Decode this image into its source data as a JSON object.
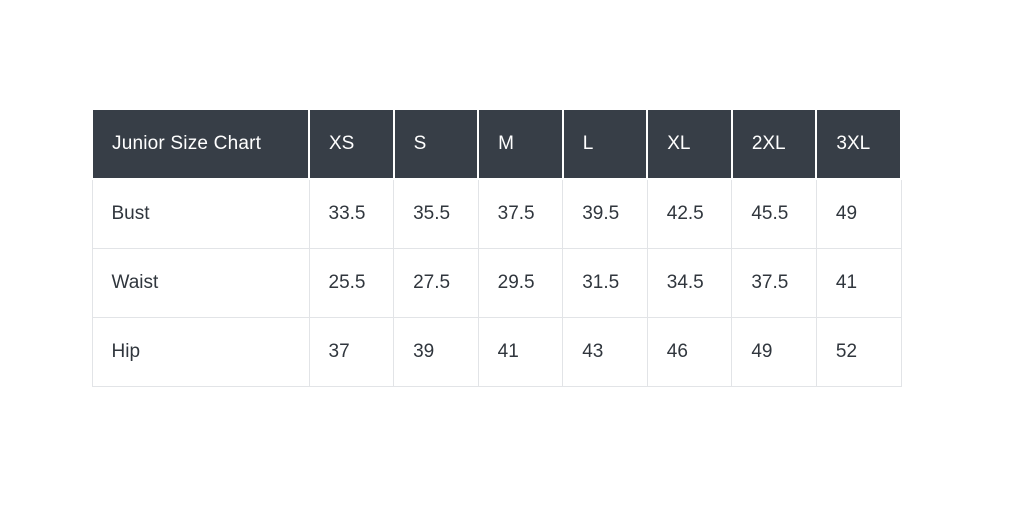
{
  "theme": {
    "page_background": "#ffffff",
    "header_background": "#373e47",
    "header_text_color": "#ffffff",
    "body_text_color": "#30363d",
    "cell_border_color": "#e2e4e7",
    "header_divider_color": "#ffffff"
  },
  "chart_data": {
    "type": "table",
    "title": "Junior Size Chart",
    "columns": [
      "XS",
      "S",
      "M",
      "L",
      "XL",
      "2XL",
      "3XL"
    ],
    "rows": [
      {
        "label": "Bust",
        "values": [
          33.5,
          35.5,
          37.5,
          39.5,
          42.5,
          45.5,
          49
        ]
      },
      {
        "label": "Waist",
        "values": [
          25.5,
          27.5,
          29.5,
          31.5,
          34.5,
          37.5,
          41
        ]
      },
      {
        "label": "Hip",
        "values": [
          37,
          39,
          41,
          43,
          46,
          49,
          52
        ]
      }
    ]
  }
}
